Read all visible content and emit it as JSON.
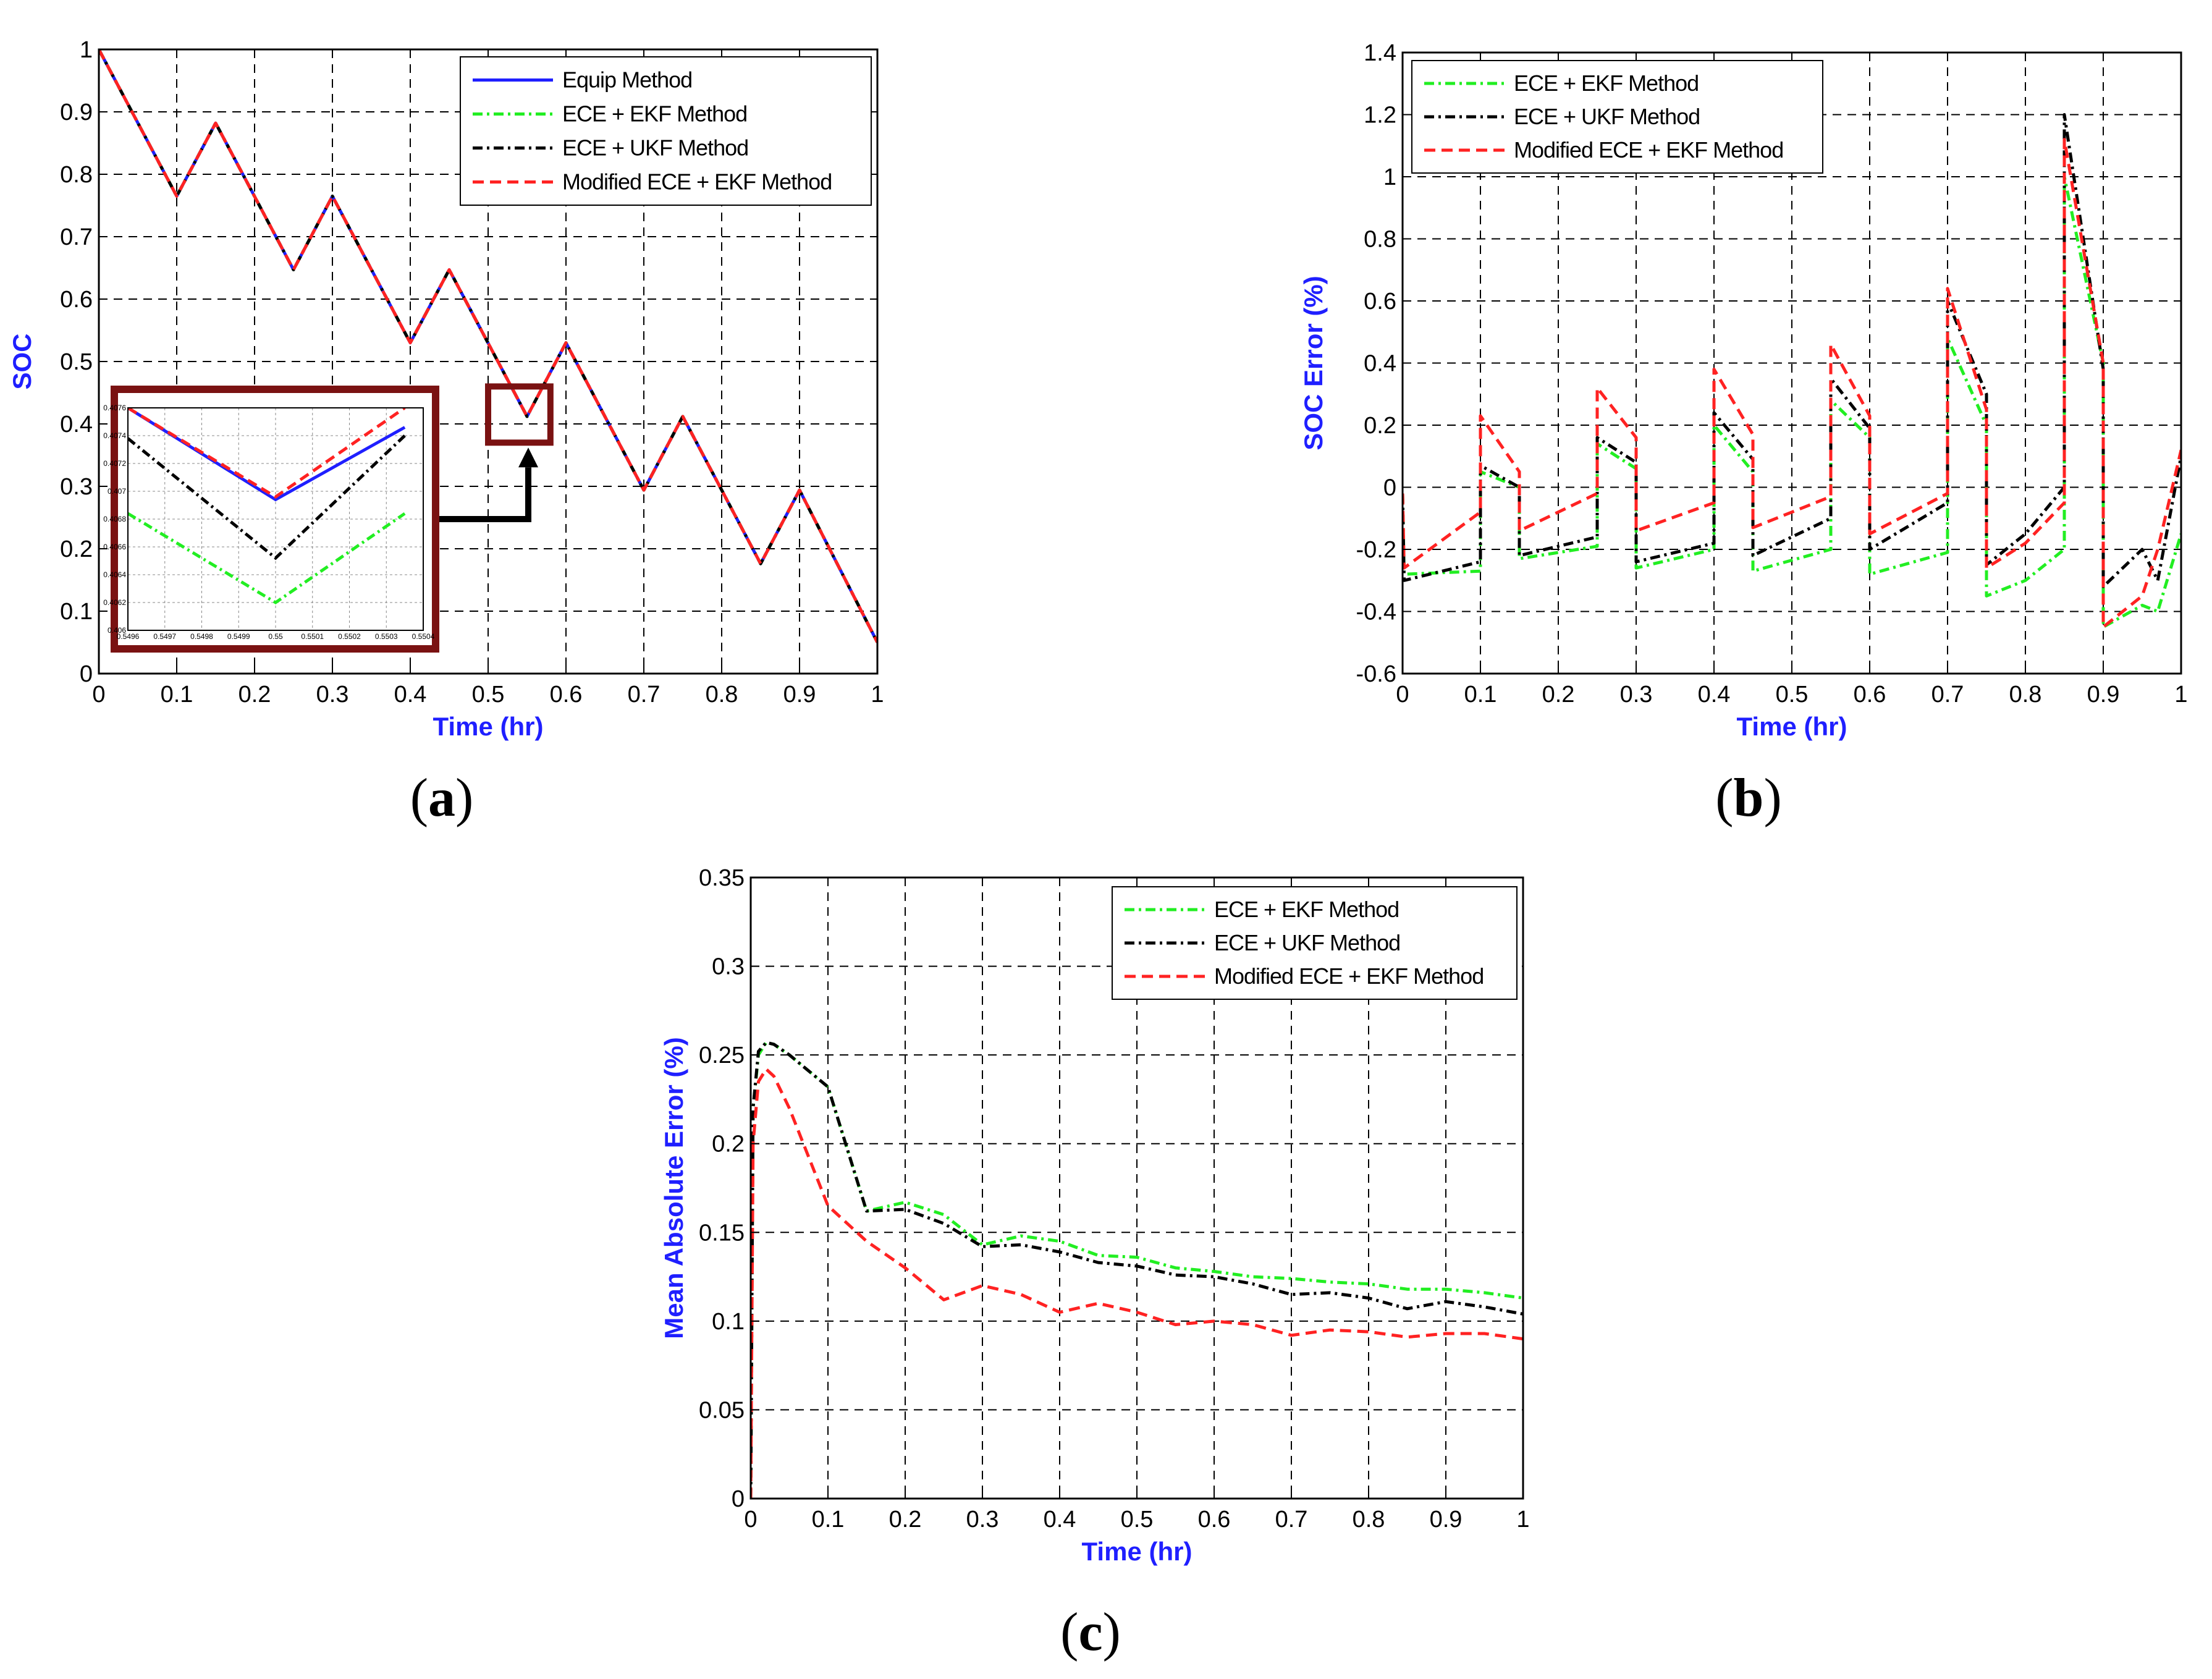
{
  "panels": {
    "a": {
      "label_open": "(",
      "label_letter": "a",
      "label_close": ")"
    },
    "b": {
      "label_open": "(",
      "label_letter": "b",
      "label_close": ")"
    },
    "c": {
      "label_open": "(",
      "label_letter": "c",
      "label_close": ")"
    }
  },
  "colors": {
    "equip": "#1f1fff",
    "ece_ekf": "#22ee22",
    "ece_ukf": "#000000",
    "modified": "#ff2222",
    "axis_label": "#1f1fff",
    "inset_frame": "#7a1212"
  },
  "chart_data": [
    {
      "id": "a",
      "type": "line",
      "title": "",
      "xlabel": "Time (hr)",
      "ylabel": "SOC",
      "xlim": [
        0,
        1
      ],
      "ylim": [
        0,
        1
      ],
      "xticks": [
        0,
        0.1,
        0.2,
        0.3,
        0.4,
        0.5,
        0.6,
        0.7,
        0.8,
        0.9,
        1
      ],
      "yticks": [
        0,
        0.1,
        0.2,
        0.3,
        0.4,
        0.5,
        0.6,
        0.7,
        0.8,
        0.9,
        1
      ],
      "grid": true,
      "legend_position": "top-right",
      "series": [
        {
          "name": "Equip Method",
          "style": "solid",
          "color": "#1f1fff",
          "x": [
            0,
            0.1,
            0.15,
            0.25,
            0.3,
            0.4,
            0.45,
            0.55,
            0.6,
            0.7,
            0.75,
            0.85,
            0.9,
            1.0
          ],
          "y": [
            1.0,
            0.765,
            0.882,
            0.647,
            0.765,
            0.53,
            0.647,
            0.412,
            0.53,
            0.294,
            0.412,
            0.176,
            0.294,
            0.05
          ]
        },
        {
          "name": "ECE + EKF Method",
          "style": "dashdot",
          "color": "#22ee22",
          "x": [
            0,
            0.1,
            0.15,
            0.25,
            0.3,
            0.4,
            0.45,
            0.55,
            0.6,
            0.7,
            0.75,
            0.85,
            0.9,
            1.0
          ],
          "y": [
            1.0,
            0.765,
            0.882,
            0.647,
            0.765,
            0.53,
            0.647,
            0.412,
            0.53,
            0.294,
            0.412,
            0.176,
            0.294,
            0.05
          ]
        },
        {
          "name": "ECE + UKF Method",
          "style": "dashdot",
          "color": "#000000",
          "x": [
            0,
            0.1,
            0.15,
            0.25,
            0.3,
            0.4,
            0.45,
            0.55,
            0.6,
            0.7,
            0.75,
            0.85,
            0.9,
            1.0
          ],
          "y": [
            1.0,
            0.765,
            0.882,
            0.647,
            0.765,
            0.53,
            0.647,
            0.412,
            0.53,
            0.294,
            0.412,
            0.176,
            0.294,
            0.05
          ]
        },
        {
          "name": "Modified ECE + EKF Method",
          "style": "dashed",
          "color": "#ff2222",
          "x": [
            0,
            0.1,
            0.15,
            0.25,
            0.3,
            0.4,
            0.45,
            0.55,
            0.6,
            0.7,
            0.75,
            0.85,
            0.9,
            1.0
          ],
          "y": [
            1.0,
            0.765,
            0.882,
            0.647,
            0.765,
            0.53,
            0.647,
            0.412,
            0.53,
            0.294,
            0.412,
            0.176,
            0.294,
            0.05
          ]
        }
      ],
      "inset": {
        "xlim": [
          0.5496,
          0.5504
        ],
        "ylim": [
          0.406,
          0.4076
        ],
        "xticks": [
          "0.5496",
          "0.5497",
          "0.5498",
          "0.5499",
          "0.55",
          "0.5501",
          "0.5502",
          "0.5503",
          "0.5504"
        ],
        "yticks": [
          "0.406",
          "0.4062",
          "0.4064",
          "0.4066",
          "0.4068",
          "0.407",
          "0.4072",
          "0.4074",
          "0.4076"
        ],
        "zoom_box_x": [
          0.5,
          0.58
        ],
        "zoom_box_y": [
          0.37,
          0.46
        ],
        "series": [
          {
            "name": "Equip Method",
            "x": [
              0.5496,
              0.55,
              0.55035
            ],
            "y": [
              0.4076,
              0.40694,
              0.40746
            ]
          },
          {
            "name": "ECE + EKF Method",
            "x": [
              0.5496,
              0.55,
              0.55035
            ],
            "y": [
              0.40684,
              0.4062,
              0.40684
            ]
          },
          {
            "name": "ECE + UKF Method",
            "x": [
              0.5496,
              0.55,
              0.55035
            ],
            "y": [
              0.40738,
              0.40652,
              0.4074
            ]
          },
          {
            "name": "Modified ECE + EKF Method",
            "x": [
              0.5496,
              0.55,
              0.55035
            ],
            "y": [
              0.4076,
              0.40696,
              0.4076
            ]
          }
        ]
      }
    },
    {
      "id": "b",
      "type": "line",
      "title": "",
      "xlabel": "Time (hr)",
      "ylabel": "SOC Error (%)",
      "xlim": [
        0,
        1
      ],
      "ylim": [
        -0.6,
        1.4
      ],
      "xticks": [
        0,
        0.1,
        0.2,
        0.3,
        0.4,
        0.5,
        0.6,
        0.7,
        0.8,
        0.9,
        1
      ],
      "yticks": [
        -0.6,
        -0.4,
        -0.2,
        0,
        0.2,
        0.4,
        0.6,
        0.8,
        1,
        1.2,
        1.4
      ],
      "grid": true,
      "legend_position": "top-left",
      "series": [
        {
          "name": "ECE + EKF Method",
          "style": "dashdot",
          "color": "#22ee22",
          "x": [
            0,
            0.002,
            0.1,
            0.1,
            0.15,
            0.15,
            0.25,
            0.25,
            0.3,
            0.3,
            0.4,
            0.4,
            0.45,
            0.45,
            0.55,
            0.55,
            0.6,
            0.6,
            0.7,
            0.7,
            0.75,
            0.75,
            0.8,
            0.85,
            0.85,
            0.9,
            0.9,
            0.95,
            0.97,
            1.0
          ],
          "y": [
            -0.02,
            -0.28,
            -0.27,
            0.05,
            0.0,
            -0.23,
            -0.19,
            0.14,
            0.06,
            -0.26,
            -0.2,
            0.2,
            0.05,
            -0.27,
            -0.2,
            0.28,
            0.16,
            -0.28,
            -0.21,
            0.48,
            0.2,
            -0.35,
            -0.3,
            -0.2,
            1.0,
            0.4,
            -0.45,
            -0.38,
            -0.4,
            -0.15
          ]
        },
        {
          "name": "ECE + UKF Method",
          "style": "dashdot",
          "color": "#000000",
          "x": [
            0,
            0.002,
            0.1,
            0.1,
            0.15,
            0.15,
            0.25,
            0.25,
            0.3,
            0.3,
            0.4,
            0.4,
            0.45,
            0.45,
            0.55,
            0.55,
            0.6,
            0.6,
            0.7,
            0.7,
            0.75,
            0.75,
            0.8,
            0.85,
            0.85,
            0.9,
            0.9,
            0.95,
            0.97,
            1.0
          ],
          "y": [
            -0.02,
            -0.3,
            -0.24,
            0.07,
            0.0,
            -0.22,
            -0.16,
            0.16,
            0.08,
            -0.24,
            -0.18,
            0.24,
            0.09,
            -0.22,
            -0.1,
            0.35,
            0.19,
            -0.2,
            -0.05,
            0.6,
            0.3,
            -0.25,
            -0.15,
            0.0,
            1.2,
            0.38,
            -0.32,
            -0.2,
            -0.3,
            0.1
          ]
        },
        {
          "name": "Modified ECE + EKF Method",
          "style": "dashed",
          "color": "#ff2222",
          "x": [
            0,
            0.002,
            0.1,
            0.1,
            0.15,
            0.15,
            0.25,
            0.25,
            0.3,
            0.3,
            0.4,
            0.4,
            0.45,
            0.45,
            0.55,
            0.55,
            0.6,
            0.6,
            0.7,
            0.7,
            0.75,
            0.75,
            0.8,
            0.85,
            0.85,
            0.9,
            0.9,
            0.95,
            0.97,
            1.0
          ],
          "y": [
            -0.02,
            -0.26,
            -0.08,
            0.23,
            0.05,
            -0.14,
            -0.02,
            0.32,
            0.16,
            -0.14,
            -0.05,
            0.38,
            0.17,
            -0.13,
            -0.03,
            0.46,
            0.23,
            -0.15,
            -0.02,
            0.64,
            0.25,
            -0.26,
            -0.18,
            -0.05,
            1.12,
            0.4,
            -0.45,
            -0.35,
            -0.2,
            0.12
          ]
        }
      ]
    },
    {
      "id": "c",
      "type": "line",
      "title": "",
      "xlabel": "Time (hr)",
      "ylabel": "Mean Absolute Error (%)",
      "xlim": [
        0,
        1
      ],
      "ylim": [
        0,
        0.35
      ],
      "xticks": [
        0,
        0.1,
        0.2,
        0.3,
        0.4,
        0.5,
        0.6,
        0.7,
        0.8,
        0.9,
        1
      ],
      "yticks": [
        0,
        0.05,
        0.1,
        0.15,
        0.2,
        0.25,
        0.3,
        0.35
      ],
      "grid": true,
      "legend_position": "top-right",
      "series": [
        {
          "name": "ECE + EKF Method",
          "style": "dashdot",
          "color": "#22ee22",
          "x": [
            0,
            0.003,
            0.01,
            0.02,
            0.03,
            0.05,
            0.1,
            0.15,
            0.2,
            0.25,
            0.3,
            0.35,
            0.4,
            0.45,
            0.5,
            0.55,
            0.6,
            0.65,
            0.7,
            0.75,
            0.8,
            0.85,
            0.9,
            0.95,
            1.0
          ],
          "y": [
            0.0,
            0.22,
            0.25,
            0.257,
            0.256,
            0.25,
            0.232,
            0.162,
            0.167,
            0.16,
            0.143,
            0.148,
            0.145,
            0.137,
            0.136,
            0.13,
            0.128,
            0.125,
            0.124,
            0.122,
            0.121,
            0.118,
            0.118,
            0.116,
            0.113
          ]
        },
        {
          "name": "ECE + UKF Method",
          "style": "dashdot",
          "color": "#000000",
          "x": [
            0,
            0.003,
            0.01,
            0.02,
            0.03,
            0.05,
            0.1,
            0.15,
            0.2,
            0.25,
            0.3,
            0.35,
            0.4,
            0.45,
            0.5,
            0.55,
            0.6,
            0.65,
            0.7,
            0.75,
            0.8,
            0.85,
            0.9,
            0.95,
            1.0
          ],
          "y": [
            0.0,
            0.22,
            0.252,
            0.257,
            0.256,
            0.25,
            0.232,
            0.162,
            0.163,
            0.155,
            0.142,
            0.143,
            0.139,
            0.133,
            0.131,
            0.126,
            0.125,
            0.121,
            0.115,
            0.116,
            0.113,
            0.107,
            0.111,
            0.108,
            0.104
          ]
        },
        {
          "name": "Modified ECE + EKF Method",
          "style": "dashed",
          "color": "#ff2222",
          "x": [
            0,
            0.003,
            0.01,
            0.02,
            0.03,
            0.05,
            0.1,
            0.15,
            0.2,
            0.25,
            0.3,
            0.35,
            0.4,
            0.45,
            0.5,
            0.55,
            0.6,
            0.65,
            0.7,
            0.75,
            0.8,
            0.85,
            0.9,
            0.95,
            1.0
          ],
          "y": [
            0.0,
            0.2,
            0.235,
            0.242,
            0.238,
            0.22,
            0.165,
            0.145,
            0.13,
            0.112,
            0.12,
            0.115,
            0.105,
            0.11,
            0.105,
            0.098,
            0.1,
            0.098,
            0.092,
            0.095,
            0.094,
            0.091,
            0.093,
            0.093,
            0.09
          ]
        }
      ]
    }
  ]
}
